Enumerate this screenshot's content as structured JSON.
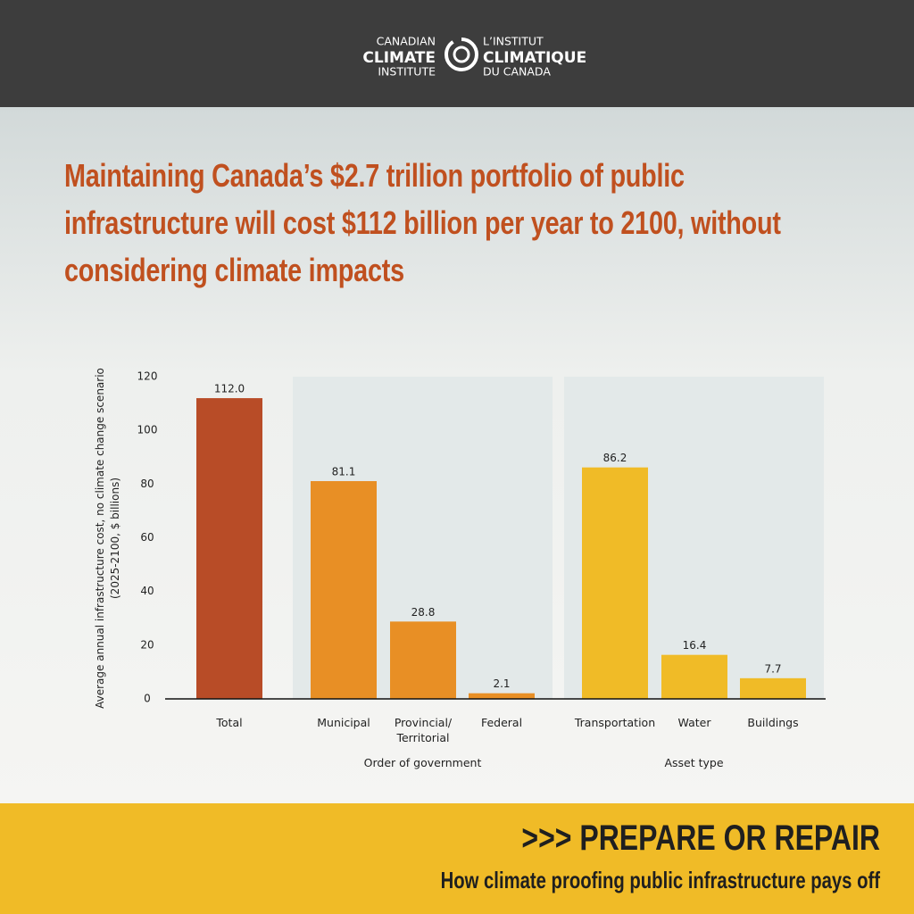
{
  "header": {
    "logo_en": [
      "CANADIAN",
      "CLIMATE",
      "INSTITUTE"
    ],
    "logo_fr": [
      "L’INSTITUT",
      "CLIMATIQUE",
      "DU CANADA"
    ]
  },
  "chart_data": {
    "type": "bar",
    "title": "Maintaining Canada’s $2.7 trillion portfolio of public infrastructure will cost $112 billion per year to 2100, without considering climate impacts",
    "ylabel": [
      "Average annual infrastructure cost, no climate change scenario",
      "(2025-2100, $ billions)"
    ],
    "categories": [
      "Total",
      "Municipal",
      "Provincial/ Territorial",
      "Federal",
      "Transportation",
      "Water",
      "Buildings"
    ],
    "category_groups": [
      null,
      "Order of government",
      "Order of government",
      "Order of government",
      "Asset type",
      "Asset type",
      "Asset type"
    ],
    "values": [
      112,
      81.1,
      28.8,
      2.1,
      86.2,
      16.4,
      7.7
    ],
    "value_labels": [
      "112.0",
      "81.1",
      "28.8",
      "2.1",
      "86.2",
      "16.4",
      "7.7"
    ],
    "colors": [
      "#b84c27",
      "#e88f25",
      "#e88f25",
      "#e88f25",
      "#f0bb27",
      "#f0bb27",
      "#f0bb27"
    ],
    "ylim": [
      0,
      120
    ],
    "yticks": [
      0,
      20,
      40,
      60,
      80,
      100,
      120
    ],
    "grid": false
  },
  "footer": {
    "title": ">>> PREPARE OR REPAIR",
    "subtitle": "How climate proofing public infrastructure pays off"
  }
}
